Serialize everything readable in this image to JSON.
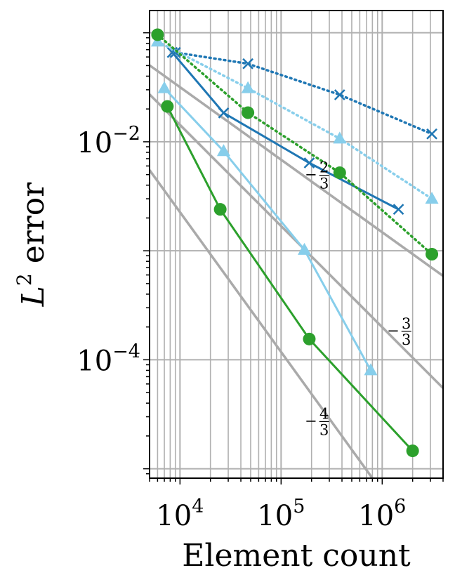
{
  "chart_data": {
    "type": "line",
    "title": "",
    "xlabel": "Element count",
    "ylabel_base": "L",
    "ylabel_exp": "2",
    "ylabel_rest": " error",
    "x_scale": "log",
    "y_scale": "log",
    "xlim": [
      5000,
      4000000
    ],
    "ylim": [
      8.2e-06,
      0.16
    ],
    "grid": true,
    "grid_color": "#b0b0b0",
    "xticks": [
      {
        "value": 10000,
        "base": "10",
        "exp": "4"
      },
      {
        "value": 100000,
        "base": "10",
        "exp": "5"
      },
      {
        "value": 1000000,
        "base": "10",
        "exp": "6"
      }
    ],
    "yticks": [
      {
        "value": 0.0001,
        "base": "10",
        "exp": "−4"
      },
      {
        "value": 0.01,
        "base": "10",
        "exp": "−2"
      }
    ],
    "series": [
      {
        "color": "#1f77b4",
        "style": "dotted",
        "marker": "x",
        "points": [
          [
            9000,
            0.066
          ],
          [
            47000,
            0.052
          ],
          [
            380000,
            0.027
          ],
          [
            3100000,
            0.0118
          ]
        ]
      },
      {
        "color": "#1f77b4",
        "style": "solid",
        "marker": "x",
        "points": [
          [
            8400,
            0.066
          ],
          [
            27000,
            0.0184
          ],
          [
            190000,
            0.0064
          ],
          [
            1450000,
            0.0024
          ]
        ]
      },
      {
        "color": "#87ceeb",
        "style": "dotted",
        "marker": "triangle",
        "points": [
          [
            6000,
            0.083
          ],
          [
            47000,
            0.031
          ],
          [
            380000,
            0.0107
          ],
          [
            3100000,
            0.003
          ]
        ]
      },
      {
        "color": "#87ceeb",
        "style": "solid",
        "marker": "triangle",
        "points": [
          [
            7000,
            0.031
          ],
          [
            27000,
            0.0082
          ],
          [
            170000,
            0.00102
          ],
          [
            770000,
            8e-05
          ]
        ]
      },
      {
        "color": "#2ca02c",
        "style": "dotted",
        "marker": "circle",
        "points": [
          [
            6000,
            0.096
          ],
          [
            47000,
            0.0185
          ],
          [
            380000,
            0.0052
          ],
          [
            3100000,
            0.00093
          ]
        ]
      },
      {
        "color": "#2ca02c",
        "style": "solid",
        "marker": "circle",
        "points": [
          [
            7500,
            0.0211
          ],
          [
            25000,
            0.0024
          ],
          [
            190000,
            0.000155
          ],
          [
            2000000,
            1.46e-05
          ]
        ]
      }
    ],
    "reference_lines": [
      {
        "label_num": "2",
        "label_den": "3",
        "label_sign": "−",
        "points": [
          [
            5000,
            0.0503
          ],
          [
            4000000,
            0.000588
          ]
        ],
        "label_at": [
          200000,
          0.005
        ]
      },
      {
        "label_num": "3",
        "label_den": "3",
        "label_sign": "−",
        "points": [
          [
            5000,
            0.0272
          ],
          [
            4000000,
            5.5e-05
          ]
        ],
        "label_at": [
          1300000,
          0.000185
        ]
      },
      {
        "label_num": "4",
        "label_den": "3",
        "label_sign": "−",
        "points": [
          [
            5000,
            0.0055
          ],
          [
            800000,
            8.2e-06
          ]
        ],
        "label_at": [
          200000,
          2.75e-05
        ]
      }
    ]
  }
}
